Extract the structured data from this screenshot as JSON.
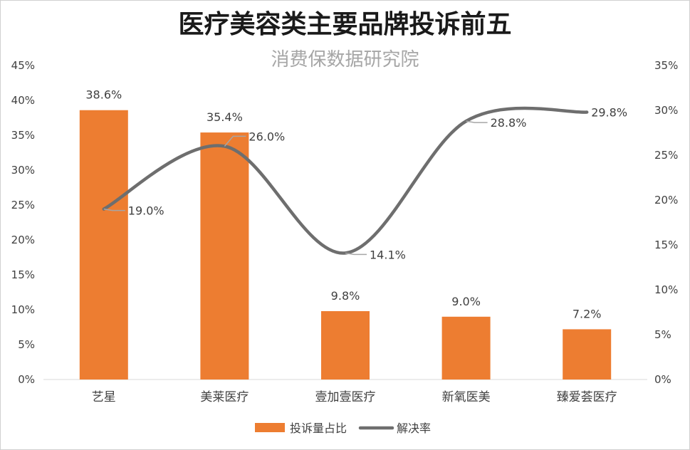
{
  "chart_data": {
    "type": "bar",
    "title": "医疗美容类主要品牌投诉前五",
    "subtitle": "消费保数据研究院",
    "categories": [
      "艺星",
      "美莱医疗",
      "壹加壹医疗",
      "新氧医美",
      "臻爱荟医疗"
    ],
    "series": [
      {
        "name": "投诉量占比",
        "type": "bar",
        "axis": "left",
        "color": "#ED7D31",
        "values": [
          38.6,
          35.4,
          9.8,
          9.0,
          7.2
        ],
        "labels": [
          "38.6%",
          "35.4%",
          "9.8%",
          "9.0%",
          "7.2%"
        ]
      },
      {
        "name": "解决率",
        "type": "line",
        "smooth": true,
        "axis": "right",
        "color": "#6E6E6E",
        "values": [
          19.0,
          26.0,
          14.1,
          28.8,
          29.8
        ],
        "labels": [
          "19.0%",
          "26.0%",
          "14.1%",
          "28.8%",
          "29.8%"
        ]
      }
    ],
    "y_left": {
      "ylim": [
        0,
        45
      ],
      "ticks": [
        "0%",
        "5%",
        "10%",
        "15%",
        "20%",
        "25%",
        "30%",
        "35%",
        "40%",
        "45%"
      ]
    },
    "y_right": {
      "ylim": [
        0,
        35
      ],
      "ticks": [
        "0%",
        "5%",
        "10%",
        "15%",
        "20%",
        "25%",
        "30%",
        "35%"
      ]
    },
    "grid": false,
    "legend": "bottom-center"
  }
}
